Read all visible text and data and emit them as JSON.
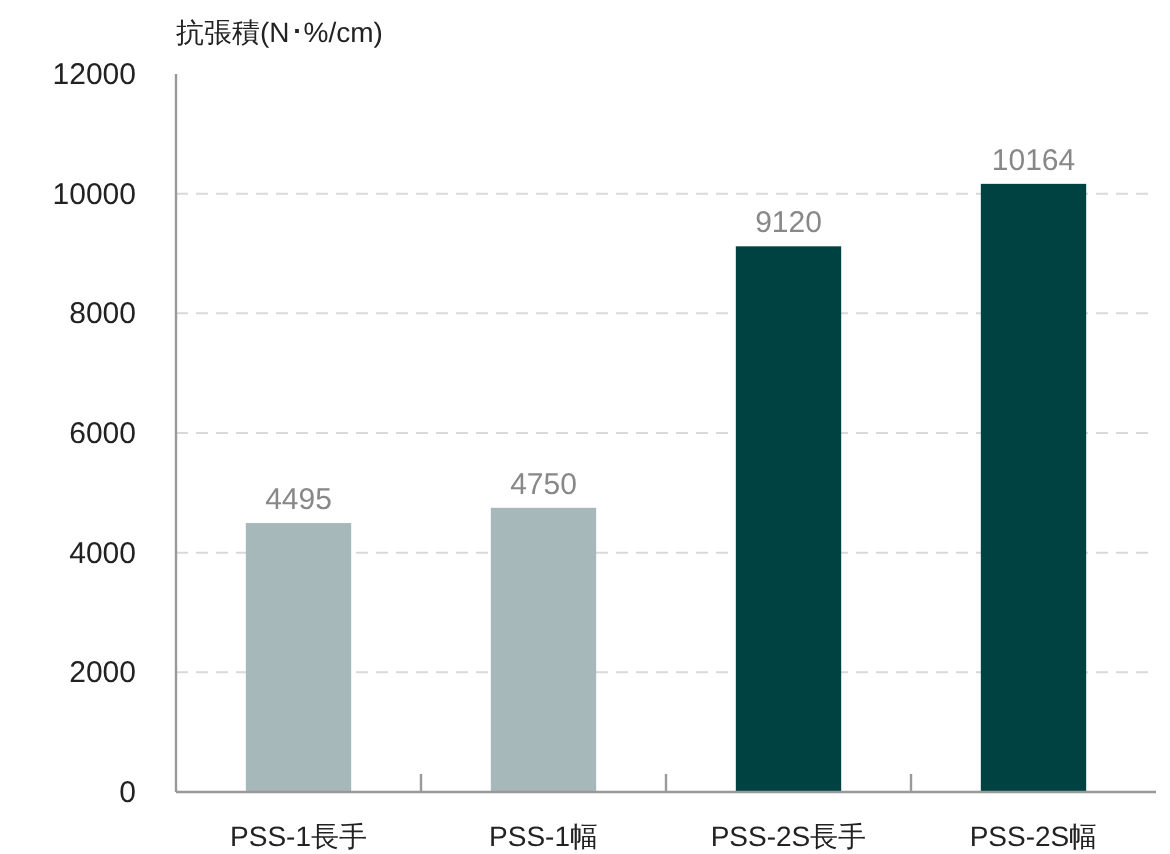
{
  "chart_data": {
    "type": "bar",
    "ylabel": "抗張積(N･%/cm)",
    "categories": [
      "PSS-1長手",
      "PSS-1幅",
      "PSS-2S長手",
      "PSS-2S幅"
    ],
    "values": [
      4495,
      4750,
      9120,
      10164
    ],
    "colors": [
      "#a6b8ba",
      "#a6b8ba",
      "#004241",
      "#004241"
    ],
    "ylim": [
      0,
      12000
    ],
    "yticks": [
      0,
      2000,
      4000,
      6000,
      8000,
      10000,
      12000
    ],
    "grid": "y",
    "data_labels": true
  }
}
